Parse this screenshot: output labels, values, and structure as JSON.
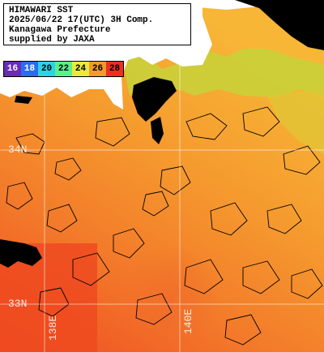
{
  "title": {
    "line1": "HIMAWARI SST",
    "line2": "2025/06/22 17(UTC) 3H Comp.",
    "line3": "Kanagawa Prefecture",
    "line4": "supplied by JAXA"
  },
  "legend": {
    "items": [
      {
        "label": "16",
        "color": "#6a2bb5",
        "text": "#ffffff"
      },
      {
        "label": "18",
        "color": "#2a6cf0",
        "text": "#ffffff"
      },
      {
        "label": "20",
        "color": "#2ad4e6",
        "text": "#000000"
      },
      {
        "label": "22",
        "color": "#5cf08a",
        "text": "#000000"
      },
      {
        "label": "24",
        "color": "#e9ea3a",
        "text": "#000000"
      },
      {
        "label": "26",
        "color": "#f29a2c",
        "text": "#000000"
      },
      {
        "label": "28",
        "color": "#ee2e1f",
        "text": "#000000"
      }
    ]
  },
  "grid_labels": {
    "lat_34": "34N",
    "lat_33": "33N",
    "lon_138": "138E",
    "lon_140": "140E"
  },
  "colors": {
    "land": "#ffffff",
    "cloud": "#000000",
    "grid": "#ffffff"
  }
}
